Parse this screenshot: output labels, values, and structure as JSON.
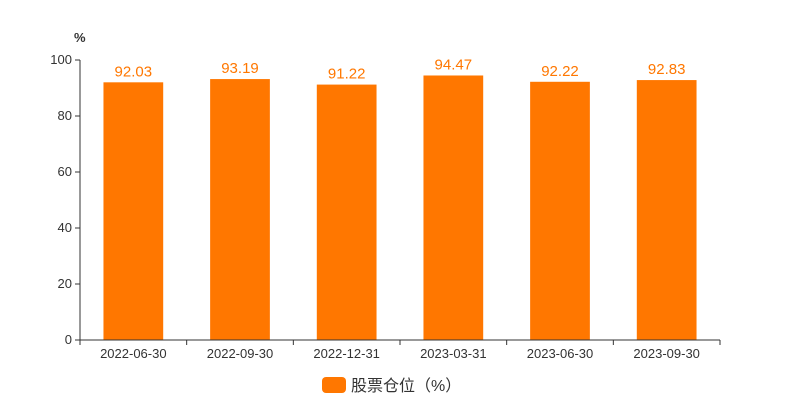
{
  "chart_data": {
    "type": "bar",
    "y_unit": "%",
    "categories": [
      "2022-06-30",
      "2022-09-30",
      "2022-12-31",
      "2023-03-31",
      "2023-06-30",
      "2023-09-30"
    ],
    "series": [
      {
        "name": "股票仓位（%）",
        "values": [
          92.03,
          93.19,
          91.22,
          94.47,
          92.22,
          92.83
        ],
        "labels": [
          "92.03",
          "93.19",
          "91.22",
          "94.47",
          "92.22",
          "92.83"
        ],
        "color": "#ff7700"
      }
    ],
    "ylim": [
      0,
      100
    ],
    "yticks": [
      0,
      20,
      40,
      60,
      80,
      100
    ],
    "grid": false,
    "legend_position": "bottom-center"
  }
}
